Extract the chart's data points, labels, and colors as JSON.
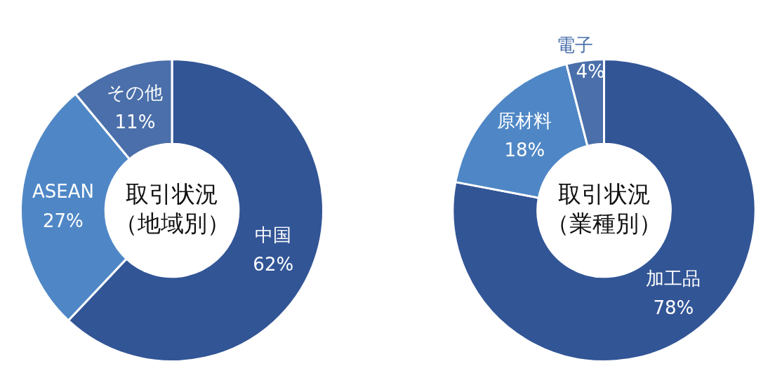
{
  "chart_data": [
    {
      "type": "donut",
      "title": "取引状況（地域別）",
      "categories": [
        "中国",
        "ASEAN",
        "その他"
      ],
      "values": [
        62,
        27,
        11
      ],
      "colors": [
        "#325596",
        "#4f87c6",
        "#4a6faa"
      ],
      "value_labels": [
        "62%",
        "27%",
        "11%"
      ],
      "legend": false
    },
    {
      "type": "donut",
      "title": "取引状況（業種別）",
      "categories": [
        "加工品",
        "原材料",
        "電子"
      ],
      "values": [
        78,
        18,
        4
      ],
      "colors": [
        "#325596",
        "#4f87c6",
        "#4a6faa"
      ],
      "value_labels": [
        "78%",
        "18%",
        "4%"
      ],
      "legend": false
    }
  ]
}
